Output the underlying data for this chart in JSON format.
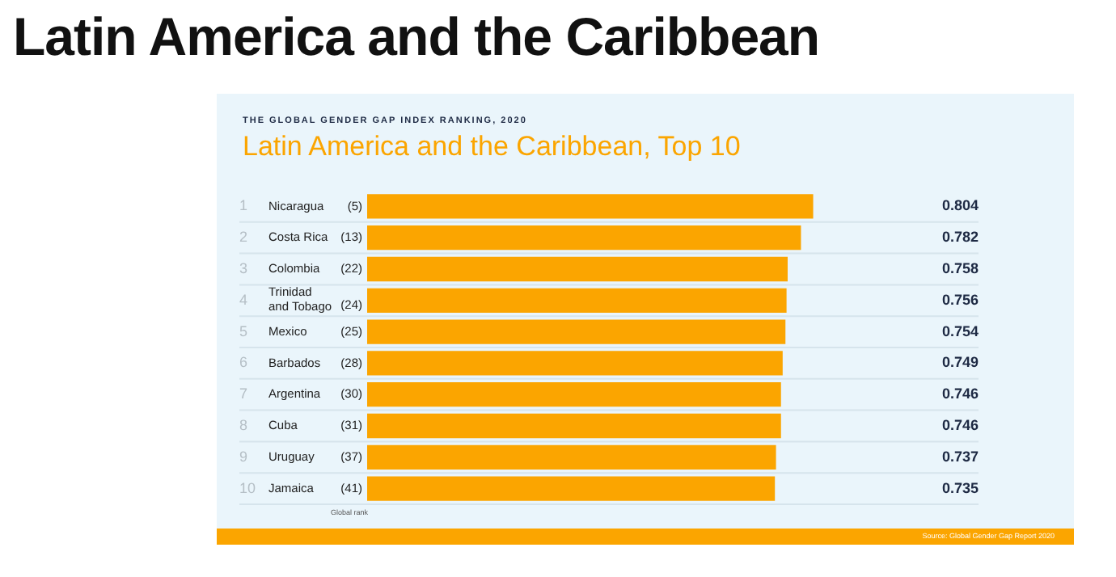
{
  "chart_data": {
    "type": "bar",
    "orientation": "horizontal",
    "title": "Latin America and the Caribbean",
    "subtitle": "THE GLOBAL GENDER GAP INDEX RANKING, 2020",
    "annotations": [
      "Latin America and the Caribbean, Top 10",
      "Global rank",
      "Source: Global Gender Gap Report 2020"
    ],
    "categories": [
      "1 Nicaragua (5)",
      "2 Costa Rica (13)",
      "3 Colombia (22)",
      "4 Trinidad and Tobago (24)",
      "5 Mexico (25)",
      "6 Barbados (28)",
      "7 Argentina (30)",
      "8 Cuba (31)",
      "9 Uruguay (37)",
      "10 Jamaica (41)"
    ],
    "values": [
      0.804,
      0.782,
      0.758,
      0.756,
      0.754,
      0.749,
      0.746,
      0.746,
      0.737,
      0.735
    ],
    "color": "#fba500",
    "data_labels": true,
    "legend": false
  }
}
